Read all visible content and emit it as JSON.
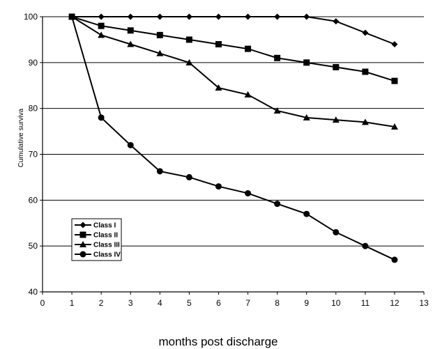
{
  "chart_data": {
    "type": "line",
    "title": "",
    "xlabel": "months post discharge",
    "ylabel": "Cumulative surviva",
    "xlim": [
      0,
      13
    ],
    "ylim": [
      40,
      100
    ],
    "xticks": [
      0,
      1,
      2,
      3,
      4,
      5,
      6,
      7,
      8,
      9,
      10,
      11,
      12,
      13
    ],
    "yticks": [
      40,
      50,
      60,
      70,
      80,
      90,
      100
    ],
    "grid": "horizontal",
    "legend_position": "lower-left",
    "x": [
      1,
      2,
      3,
      4,
      5,
      6,
      7,
      8,
      9,
      10,
      11,
      12
    ],
    "series": [
      {
        "name": "Class I",
        "marker": "diamond",
        "values": [
          100,
          100,
          100,
          100,
          100,
          100,
          100,
          100,
          100,
          99,
          96.5,
          94
        ]
      },
      {
        "name": "Class II",
        "marker": "square",
        "values": [
          100,
          98,
          97,
          96,
          95,
          94,
          93,
          91,
          90,
          89,
          88,
          86
        ]
      },
      {
        "name": "Class III",
        "marker": "triangle",
        "values": [
          100,
          96,
          94,
          92,
          90,
          84.5,
          83,
          79.5,
          78,
          77.5,
          77,
          76
        ]
      },
      {
        "name": "Class IV",
        "marker": "circle",
        "values": [
          100,
          78,
          72,
          66.3,
          65,
          63,
          61.5,
          59.2,
          57,
          53,
          50,
          47
        ]
      }
    ],
    "colors": {
      "line": "#000000",
      "grid": "#000000",
      "background": "#ffffff"
    }
  }
}
